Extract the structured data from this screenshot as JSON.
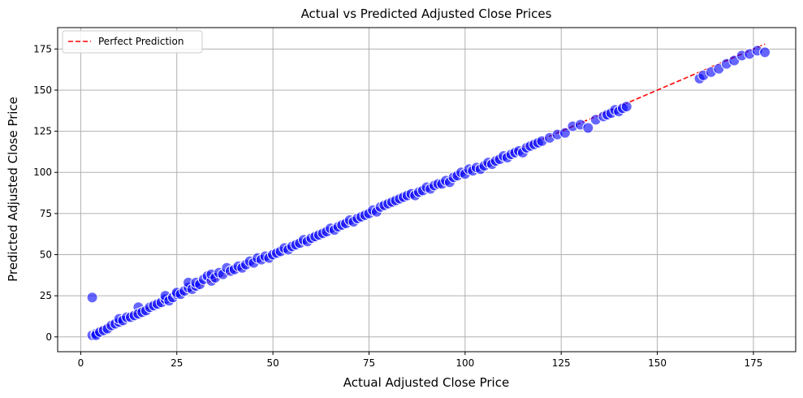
{
  "chart_data": {
    "type": "scatter",
    "title": "Actual vs Predicted Adjusted Close Prices",
    "xlabel": "Actual Adjusted Close Price",
    "ylabel": "Predicted Adjusted Close Price",
    "xlim": [
      -6,
      186
    ],
    "ylim": [
      -9,
      188
    ],
    "xticks": [
      0,
      25,
      50,
      75,
      100,
      125,
      150,
      175
    ],
    "yticks": [
      0,
      25,
      50,
      75,
      100,
      125,
      150,
      175
    ],
    "grid": true,
    "legend": {
      "position": "top-left",
      "entries": [
        "Perfect Prediction"
      ]
    },
    "colors": {
      "points": "#0000ff",
      "point_edge": "#ffffff",
      "reference_line": "#ff0000",
      "grid": "#b0b0b0"
    },
    "reference_line": {
      "name": "Perfect Prediction",
      "style": "dashed",
      "x": [
        3,
        178
      ],
      "y": [
        3,
        178
      ]
    },
    "series": [
      {
        "name": "",
        "points": [
          [
            3,
            24
          ],
          [
            3,
            1
          ],
          [
            4,
            2
          ],
          [
            4,
            1
          ],
          [
            5,
            3
          ],
          [
            6,
            4
          ],
          [
            7,
            5
          ],
          [
            8,
            7
          ],
          [
            9,
            8
          ],
          [
            10,
            9
          ],
          [
            10,
            11
          ],
          [
            11,
            10
          ],
          [
            12,
            12
          ],
          [
            13,
            12
          ],
          [
            14,
            13
          ],
          [
            15,
            18
          ],
          [
            15,
            14
          ],
          [
            16,
            15
          ],
          [
            17,
            16
          ],
          [
            18,
            18
          ],
          [
            19,
            19
          ],
          [
            20,
            20
          ],
          [
            21,
            21
          ],
          [
            22,
            23
          ],
          [
            22,
            25
          ],
          [
            23,
            22
          ],
          [
            24,
            24
          ],
          [
            25,
            26
          ],
          [
            25,
            27
          ],
          [
            26,
            26
          ],
          [
            27,
            28
          ],
          [
            28,
            30
          ],
          [
            28,
            33
          ],
          [
            29,
            29
          ],
          [
            30,
            31
          ],
          [
            30,
            33
          ],
          [
            31,
            32
          ],
          [
            32,
            35
          ],
          [
            33,
            37
          ],
          [
            34,
            34
          ],
          [
            34,
            38
          ],
          [
            35,
            36
          ],
          [
            36,
            39
          ],
          [
            37,
            38
          ],
          [
            38,
            42
          ],
          [
            39,
            40
          ],
          [
            40,
            41
          ],
          [
            41,
            43
          ],
          [
            42,
            42
          ],
          [
            43,
            44
          ],
          [
            44,
            46
          ],
          [
            45,
            45
          ],
          [
            46,
            48
          ],
          [
            47,
            47
          ],
          [
            48,
            49
          ],
          [
            49,
            48
          ],
          [
            50,
            50
          ],
          [
            51,
            51
          ],
          [
            52,
            52
          ],
          [
            53,
            54
          ],
          [
            54,
            53
          ],
          [
            55,
            55
          ],
          [
            56,
            56
          ],
          [
            57,
            57
          ],
          [
            58,
            59
          ],
          [
            59,
            58
          ],
          [
            60,
            60
          ],
          [
            61,
            61
          ],
          [
            62,
            62
          ],
          [
            63,
            63
          ],
          [
            64,
            64
          ],
          [
            65,
            66
          ],
          [
            66,
            65
          ],
          [
            67,
            67
          ],
          [
            68,
            68
          ],
          [
            69,
            69
          ],
          [
            70,
            71
          ],
          [
            71,
            70
          ],
          [
            72,
            72
          ],
          [
            73,
            73
          ],
          [
            74,
            74
          ],
          [
            75,
            75
          ],
          [
            76,
            77
          ],
          [
            77,
            76
          ],
          [
            78,
            79
          ],
          [
            79,
            80
          ],
          [
            80,
            81
          ],
          [
            81,
            82
          ],
          [
            82,
            83
          ],
          [
            83,
            84
          ],
          [
            84,
            85
          ],
          [
            85,
            86
          ],
          [
            86,
            87
          ],
          [
            87,
            86
          ],
          [
            88,
            88
          ],
          [
            89,
            89
          ],
          [
            90,
            91
          ],
          [
            91,
            90
          ],
          [
            92,
            92
          ],
          [
            93,
            93
          ],
          [
            94,
            93
          ],
          [
            95,
            95
          ],
          [
            96,
            94
          ],
          [
            97,
            97
          ],
          [
            98,
            98
          ],
          [
            99,
            100
          ],
          [
            100,
            99
          ],
          [
            101,
            102
          ],
          [
            102,
            101
          ],
          [
            103,
            103
          ],
          [
            104,
            102
          ],
          [
            105,
            104
          ],
          [
            106,
            106
          ],
          [
            107,
            105
          ],
          [
            108,
            107
          ],
          [
            109,
            108
          ],
          [
            110,
            110
          ],
          [
            111,
            109
          ],
          [
            112,
            111
          ],
          [
            113,
            112
          ],
          [
            114,
            113
          ],
          [
            115,
            112
          ],
          [
            116,
            115
          ],
          [
            117,
            116
          ],
          [
            118,
            117
          ],
          [
            119,
            118
          ],
          [
            120,
            119
          ],
          [
            122,
            121
          ],
          [
            124,
            123
          ],
          [
            126,
            124
          ],
          [
            128,
            128
          ],
          [
            130,
            129
          ],
          [
            132,
            127
          ],
          [
            134,
            132
          ],
          [
            136,
            134
          ],
          [
            137,
            135
          ],
          [
            138,
            136
          ],
          [
            139,
            138
          ],
          [
            140,
            137
          ],
          [
            141,
            139
          ],
          [
            142,
            140
          ],
          [
            161,
            157
          ],
          [
            162,
            159
          ],
          [
            164,
            161
          ],
          [
            166,
            163
          ],
          [
            168,
            166
          ],
          [
            170,
            168
          ],
          [
            172,
            171
          ],
          [
            174,
            172
          ],
          [
            176,
            174
          ],
          [
            178,
            173
          ]
        ]
      }
    ]
  }
}
